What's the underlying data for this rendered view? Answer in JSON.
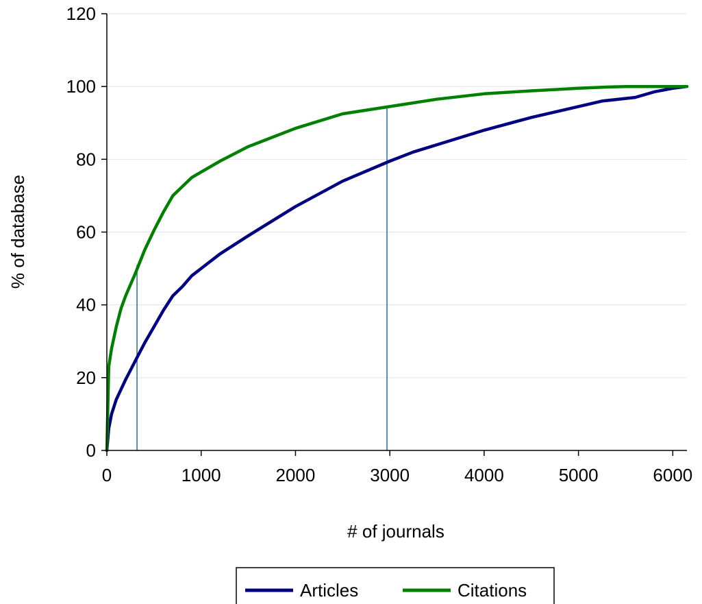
{
  "chart_data": {
    "type": "line",
    "title": "",
    "xlabel": "# of journals",
    "ylabel": "% of database",
    "xlim": [
      0,
      6150
    ],
    "ylim": [
      0,
      120
    ],
    "xticks": [
      0,
      1000,
      2000,
      3000,
      4000,
      5000,
      6000
    ],
    "yticks": [
      0,
      20,
      40,
      60,
      80,
      100,
      120
    ],
    "grid": "horizontal",
    "legend_position": "bottom",
    "series": [
      {
        "name": "Articles",
        "color": "#000080",
        "x": [
          0,
          20,
          50,
          100,
          200,
          300,
          400,
          500,
          600,
          700,
          800,
          900,
          1000,
          1200,
          1500,
          2000,
          2500,
          3000,
          3250,
          3500,
          4000,
          4500,
          5000,
          5250,
          5600,
          5800,
          6000,
          6150
        ],
        "y": [
          0,
          6,
          10,
          14,
          19.5,
          24.5,
          29.5,
          34,
          38.5,
          42.5,
          45,
          48,
          50,
          54,
          59,
          67,
          74,
          79.5,
          82,
          84,
          88,
          91.5,
          94.5,
          96,
          97,
          98.5,
          99.5,
          100
        ]
      },
      {
        "name": "Citations",
        "color": "#008000",
        "x": [
          0,
          20,
          50,
          100,
          150,
          200,
          300,
          400,
          500,
          600,
          700,
          800,
          900,
          1000,
          1200,
          1500,
          2000,
          2500,
          3000,
          3500,
          4000,
          4500,
          5000,
          5250,
          5500,
          5700,
          5800,
          6150
        ],
        "y": [
          0,
          23,
          28,
          34,
          39,
          42.5,
          48.5,
          55,
          60.5,
          65.5,
          70,
          72.5,
          75,
          76.5,
          79.5,
          83.5,
          88.5,
          92.5,
          94.5,
          96.5,
          98,
          98.8,
          99.5,
          99.8,
          100,
          100,
          100,
          100
        ]
      }
    ],
    "reference_lines": [
      {
        "label": "articles-at-50pct-citations",
        "x": [
          320,
          320
        ],
        "y": [
          51,
          0
        ]
      },
      {
        "label": "articles-at-95pct-citations",
        "x": [
          2970,
          2970
        ],
        "y": [
          94.5,
          0
        ]
      }
    ]
  }
}
